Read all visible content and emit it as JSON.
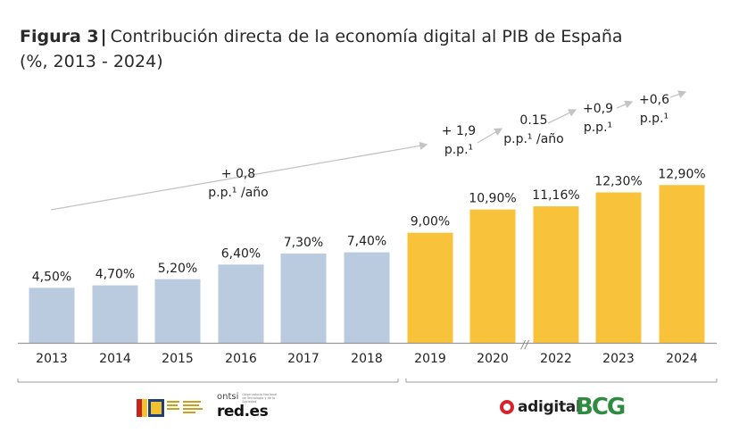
{
  "title": {
    "figure_label": "Figura 3",
    "separator": "|",
    "text": "Contribución directa de la economía digital al PIB de España",
    "subtitle": "(%, 2013 - 2024)"
  },
  "chart_data": {
    "type": "bar",
    "categories": [
      "2013",
      "2014",
      "2015",
      "2016",
      "2017",
      "2018",
      "2019",
      "2020",
      "2022",
      "2023",
      "2024"
    ],
    "values": [
      4.5,
      4.7,
      5.2,
      6.4,
      7.3,
      7.4,
      9.0,
      10.9,
      11.16,
      12.3,
      12.9
    ],
    "value_labels": [
      "4,50%",
      "4,70%",
      "5,20%",
      "6,40%",
      "7,30%",
      "7,40%",
      "9,00%",
      "10,90%",
      "11,16%",
      "12,30%",
      "12,90%"
    ],
    "colors": {
      "historic": "#bacbdf",
      "recent": "#f8c23b",
      "baseline": "#9a9a9a",
      "trend_arrow": "#c4c4c4"
    },
    "series_colors": [
      "historic",
      "historic",
      "historic",
      "historic",
      "historic",
      "historic",
      "recent",
      "recent",
      "recent",
      "recent",
      "recent"
    ],
    "axis_break_after": "2020",
    "axis_break_symbol": "//",
    "ylim": [
      0,
      14
    ],
    "grid": false,
    "annotations": [
      {
        "line1": "+ 0,8",
        "line2": "p.p.¹ /año"
      },
      {
        "line1": "+ 1,9",
        "line2": "p.p.¹"
      },
      {
        "line1": "0.15",
        "line2": "p.p.¹ /año"
      },
      {
        "line1": "+0,9",
        "line2": "p.p.¹"
      },
      {
        "line1": "+0,6",
        "line2": "p.p.¹"
      }
    ]
  },
  "footer": {
    "ontsi_label": "ontsi",
    "ontsi_small": "Observatorio Nacional de Tecnología y de la Sociedad",
    "redes_label": "red.es",
    "adigital_label": "adigital",
    "bcg_label": "BCG",
    "gov_logo": "spain-government-logo"
  }
}
